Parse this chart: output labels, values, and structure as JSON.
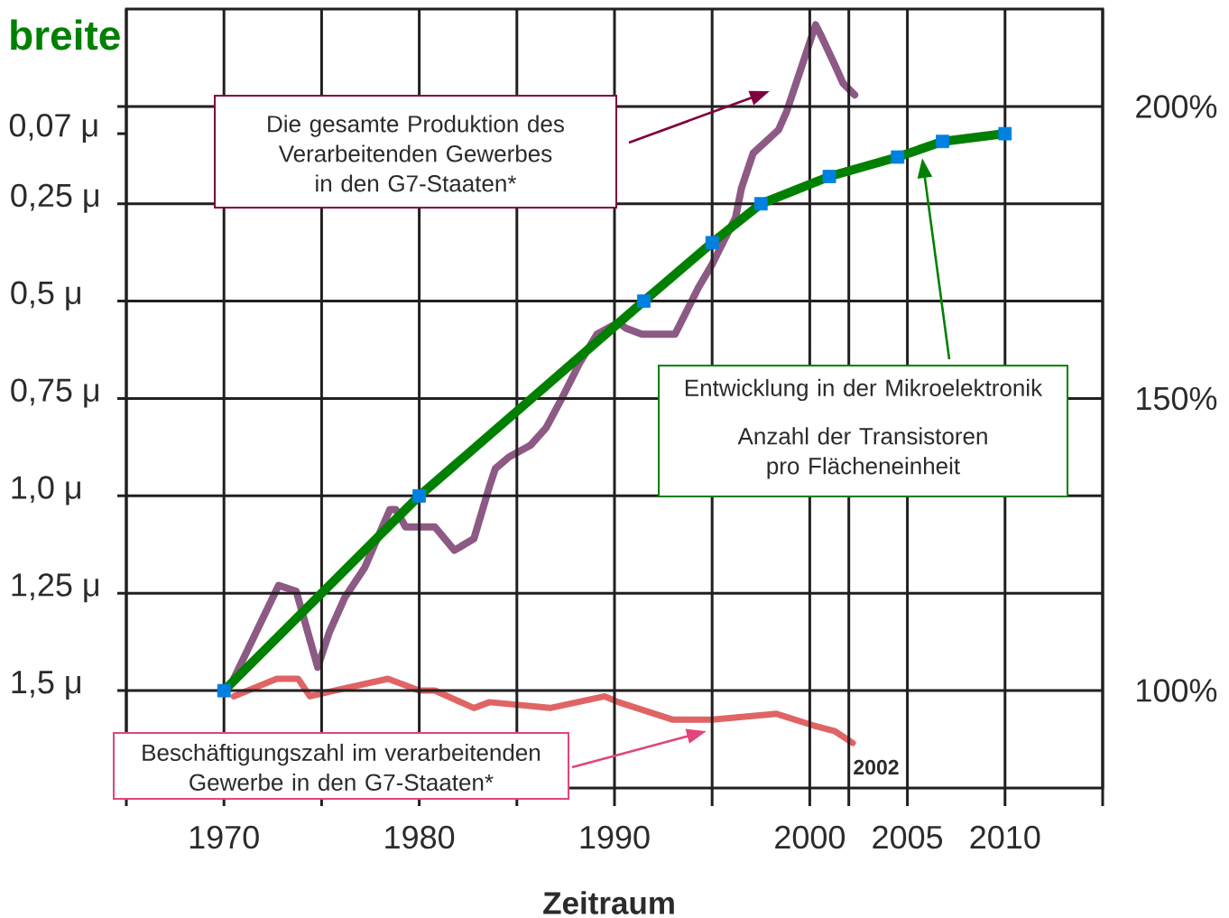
{
  "chart_data": {
    "type": "line",
    "ylabel": "breite",
    "xlabel": "Zeitraum",
    "annotations": [
      "Die gesamte Produktion des Verarbeitenden Gewerbes in den G7-Staaten*",
      "Entwicklung in der Mikroelektronik",
      "Anzahl der Transistoren pro Flächeneinheit",
      "Beschäftigungszahl im verarbeitenden Gewerbe in den G7-Staaten*",
      "2002"
    ],
    "xlim": [
      1965,
      2015
    ],
    "xticks": [
      {
        "value": 1965,
        "label": null
      },
      1970,
      {
        "value": 1975,
        "label": null
      },
      1980,
      {
        "value": 1985,
        "label": null
      },
      1990,
      {
        "value": 1995,
        "label": null
      },
      2000,
      {
        "value": 2002,
        "label": null
      },
      2005,
      2010,
      {
        "value": 2015,
        "label": null
      }
    ],
    "ylim": [
      1.75,
      -0.25
    ],
    "yticks": [
      {
        "value": 0,
        "label": null
      },
      {
        "value": 0.07,
        "label": "0,07 μ"
      },
      {
        "value": 0.25,
        "label": "0,25 μ"
      },
      {
        "value": 0.5,
        "label": "0,5 μ"
      },
      {
        "value": 0.75,
        "label": "0,75 μ"
      },
      {
        "value": 1,
        "label": "1,0 μ"
      },
      {
        "value": 1.25,
        "label": "1,25 μ"
      },
      {
        "value": 1.5,
        "label": "1,5 μ"
      }
    ],
    "y2lim": [
      83.3,
      216.7
    ],
    "y2ticks": [
      {
        "value": 100,
        "label": "100%"
      },
      {
        "value": 150,
        "label": "150%"
      },
      {
        "value": 200,
        "label": "200%"
      }
    ],
    "grid": true,
    "series": [
      {
        "color": "#008000",
        "marker": "square",
        "colors": [
          "#0080e0",
          "#0080e0",
          "#0080e0",
          "#0080e0",
          "#0080e0",
          "#0080e0",
          "#0080e0",
          "#0080e0",
          "#0080e0"
        ],
        "x": [
          1970,
          1980,
          1991.5,
          1995,
          1997.5,
          2001,
          2004.5,
          2006.8,
          2010
        ],
        "values": [
          1.5,
          1.0,
          0.5,
          0.35,
          0.25,
          0.18,
          0.13,
          0.09,
          0.07
        ]
      },
      {
        "color": "#8c5a84",
        "axis": "y2",
        "x": [
          1970.5,
          1972.8,
          1973.7,
          1974.8,
          1975.4,
          1976.2,
          1977.2,
          1978.5,
          1978.8,
          1979.3,
          1980.0,
          1980.8,
          1981.8,
          1982.8,
          1983.6,
          1983.9,
          1984.6,
          1985.7,
          1986.5,
          1987.3,
          1988.2,
          1989.1,
          1990.2,
          1990.6,
          1991.4,
          1993.1,
          1993.4,
          1994.3,
          1995.0,
          1996.2,
          1996.5,
          1997.1,
          1998.4,
          1998.8,
          1999.4,
          1999.9,
          2000.3,
          2000.6,
          2001.3,
          2001.7,
          2002.3
        ],
        "values": [
          102,
          118,
          117,
          104,
          110,
          116,
          121,
          131,
          131,
          128,
          128,
          128,
          124,
          126,
          135,
          138,
          140,
          142,
          145,
          150,
          156,
          161,
          163,
          162,
          161,
          161,
          163,
          169,
          173,
          181,
          186,
          192,
          196,
          199,
          205,
          210,
          214,
          212,
          207,
          204,
          202
        ]
      },
      {
        "color": "#e06464",
        "axis": "y2",
        "x": [
          1970.5,
          1972.7,
          1973.8,
          1974.4,
          1975.7,
          1978.4,
          1980.0,
          1980.8,
          1982.8,
          1983.6,
          1986.7,
          1989.5,
          1990.2,
          1993.0,
          1995.0,
          1998.3,
          2000.2,
          2001.3,
          2002.2
        ],
        "values": [
          99,
          102,
          102,
          99,
          100,
          102,
          100,
          100,
          97,
          98,
          97,
          99,
          98,
          95,
          95,
          96,
          94,
          93,
          91
        ]
      }
    ]
  }
}
